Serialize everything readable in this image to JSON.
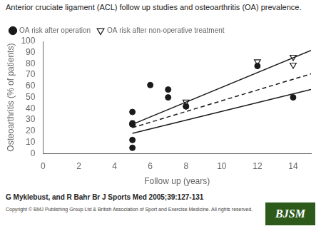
{
  "chart_data": {
    "type": "scatter",
    "title": "Anterior cruciate ligament (ACL) follow up studies and osteoarthritis (OA) prevalence.",
    "xlabel": "Follow up (years)",
    "ylabel": "Osteoarthritis (% of patients)",
    "annotations": [
      "G Myklebust, and R Bahr Br J Sports Med 2005;39:127-131",
      "Copyright © BMJ Publishing Group Ltd & British Association of Sport and Exercise Medicine.  All rights reserved.",
      "BJSM"
    ],
    "xlim": [
      0,
      15
    ],
    "ylim": [
      0,
      100
    ],
    "xticks": [
      0,
      2,
      4,
      6,
      8,
      10,
      12,
      14
    ],
    "yticks": [
      0,
      10,
      20,
      30,
      40,
      50,
      60,
      70,
      80,
      90,
      100
    ],
    "grid": false,
    "legend": "upper left",
    "series": [
      {
        "type": "line",
        "line_style": "solid",
        "color": "#1a1a1a",
        "x": [
          5,
          15
        ],
        "values": [
          26,
          92
        ]
      },
      {
        "type": "line",
        "line_style": "dashed",
        "color": "#1a1a1a",
        "x": [
          5,
          15
        ],
        "values": [
          23,
          71
        ]
      },
      {
        "type": "line",
        "line_style": "solid",
        "color": "#1a1a1a",
        "x": [
          5,
          15
        ],
        "values": [
          18,
          57
        ]
      },
      {
        "name": "OA risk after operation",
        "type": "scatter",
        "marker": "circle",
        "color": "#1a1a1a",
        "x": [
          5,
          5,
          5,
          5,
          5,
          6,
          7,
          7,
          8,
          8,
          12,
          14,
          5
        ],
        "values": [
          26,
          26,
          27,
          37,
          12,
          61,
          57,
          50,
          42,
          42,
          78,
          50,
          5
        ]
      },
      {
        "name": "OA risk after non-operative treatment",
        "type": "scatter",
        "marker": "open_triangle_down",
        "color": "#1a1a1a",
        "x": [
          8,
          12,
          14,
          14
        ],
        "values": [
          46,
          82,
          86,
          79
        ]
      }
    ]
  }
}
